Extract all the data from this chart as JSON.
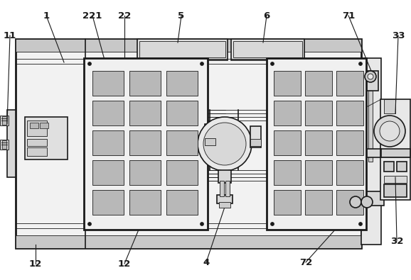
{
  "bg_color": "#ffffff",
  "lc": "#1a1a1a",
  "lw_main": 1.2,
  "lw_thick": 2.0,
  "lw_thin": 0.6,
  "grid_fill": "#c0c0c0",
  "light_fill": "#e8e8e8",
  "med_fill": "#d0d0d0",
  "white_fill": "#ffffff",
  "panel_fill": "#f0f0f0"
}
